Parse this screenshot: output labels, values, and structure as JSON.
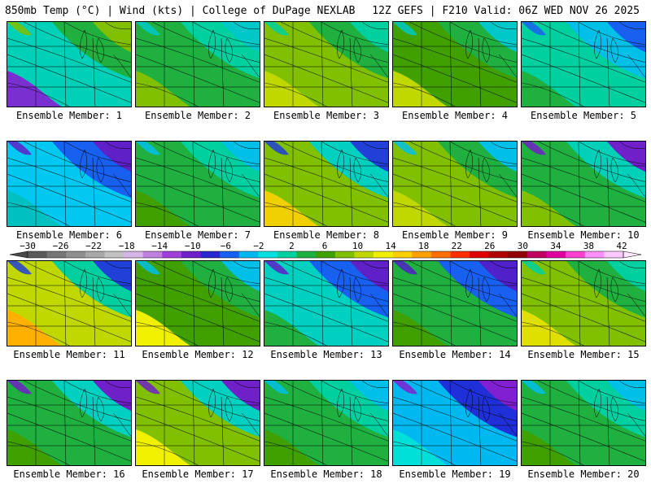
{
  "header": {
    "title": "850mb Temp (°C) | Wind (kts) | College of DuPage NEXLAB",
    "run_info": "12Z GEFS | F210 Valid: 06Z WED NOV 26 2025"
  },
  "colorbar": {
    "ticks": [
      "-30",
      "-26",
      "-22",
      "-18",
      "-14",
      "-10",
      "-6",
      "-2",
      "2",
      "6",
      "10",
      "14",
      "18",
      "22",
      "26",
      "30",
      "34",
      "38",
      "42"
    ],
    "colors": [
      "#5a5a5a",
      "#767676",
      "#8f8f8f",
      "#a8a8a8",
      "#c2c2c2",
      "#d6b4e6",
      "#c080e0",
      "#a040d8",
      "#7020c8",
      "#2828d0",
      "#1860f0",
      "#00b8f0",
      "#00e0e0",
      "#00d0a0",
      "#20b040",
      "#40a000",
      "#80c000",
      "#c0d800",
      "#f0f000",
      "#ffd000",
      "#ffa000",
      "#ff7000",
      "#ff3000",
      "#e00000",
      "#b00000",
      "#900000",
      "#c00060",
      "#e000a0",
      "#ff40d0",
      "#ff90ff",
      "#ffc8ff"
    ]
  },
  "panels": [
    {
      "label": "Ensemble Member: 1",
      "colors": [
        "#7a30d0",
        "#00d0b8",
        "#20b040",
        "#80c000"
      ]
    },
    {
      "label": "Ensemble Member: 2",
      "colors": [
        "#80c000",
        "#20b040",
        "#00d0a0",
        "#00c8c8"
      ]
    },
    {
      "label": "Ensemble Member: 3",
      "colors": [
        "#c0d800",
        "#80c000",
        "#20b040",
        "#00d0a0"
      ]
    },
    {
      "label": "Ensemble Member: 4",
      "colors": [
        "#c0d800",
        "#40a000",
        "#20b040",
        "#00c8c8"
      ]
    },
    {
      "label": "Ensemble Member: 5",
      "colors": [
        "#20b040",
        "#00d0a0",
        "#00c0e8",
        "#1860f0"
      ]
    },
    {
      "label": "Ensemble Member: 6",
      "colors": [
        "#00c0c0",
        "#00c8f0",
        "#1860f0",
        "#6020c8"
      ]
    },
    {
      "label": "Ensemble Member: 7",
      "colors": [
        "#40a000",
        "#20b040",
        "#00d0a0",
        "#00c0e8"
      ]
    },
    {
      "label": "Ensemble Member: 8",
      "colors": [
        "#f0d000",
        "#80c000",
        "#00d0c0",
        "#2040d8"
      ]
    },
    {
      "label": "Ensemble Member: 9",
      "colors": [
        "#c0d800",
        "#80c000",
        "#20b040",
        "#00c0e8"
      ]
    },
    {
      "label": "Ensemble Member: 10",
      "colors": [
        "#80c000",
        "#20b040",
        "#00d0b8",
        "#7020c8"
      ]
    },
    {
      "label": "Ensemble Member: 11",
      "colors": [
        "#ffb000",
        "#c0d800",
        "#00d0a0",
        "#2040d8"
      ]
    },
    {
      "label": "Ensemble Member: 12",
      "colors": [
        "#f0f000",
        "#40a000",
        "#20b040",
        "#00c0e8"
      ]
    },
    {
      "label": "Ensemble Member: 13",
      "colors": [
        "#20b040",
        "#00d0c0",
        "#1860f0",
        "#6020c8"
      ]
    },
    {
      "label": "Ensemble Member: 14",
      "colors": [
        "#40a000",
        "#20b040",
        "#1860f0",
        "#5020c8"
      ]
    },
    {
      "label": "Ensemble Member: 15",
      "colors": [
        "#e0e000",
        "#80c000",
        "#20b040",
        "#00d0a0"
      ]
    },
    {
      "label": "Ensemble Member: 16",
      "colors": [
        "#40a000",
        "#20b040",
        "#00d0c0",
        "#7020c8"
      ]
    },
    {
      "label": "Ensemble Member: 17",
      "colors": [
        "#f0f000",
        "#80c000",
        "#00d0c0",
        "#7020c8"
      ]
    },
    {
      "label": "Ensemble Member: 18",
      "colors": [
        "#40a000",
        "#20b040",
        "#00d0a0",
        "#00c0e8"
      ]
    },
    {
      "label": "Ensemble Member: 19",
      "colors": [
        "#00e0d8",
        "#00b8f0",
        "#2030d8",
        "#8020d0"
      ]
    },
    {
      "label": "Ensemble Member: 20",
      "colors": [
        "#40a000",
        "#20b040",
        "#00d0a0",
        "#00c0e8"
      ]
    }
  ]
}
